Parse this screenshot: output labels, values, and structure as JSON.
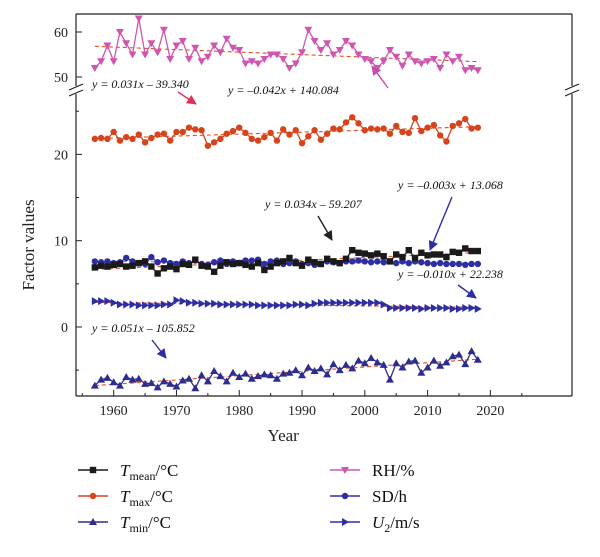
{
  "chart_data": {
    "type": "line",
    "title": "",
    "xlabel": "Year",
    "ylabel": "Factor values",
    "x_range": [
      1954,
      2033
    ],
    "x_ticks": [
      1960,
      1970,
      1980,
      1990,
      2000,
      2010,
      2020
    ],
    "lower_ylim": [
      -8,
      27
    ],
    "lower_ticks": [
      0,
      10,
      20
    ],
    "upper_ylim": [
      48,
      64
    ],
    "upper_ticks": [
      50,
      60
    ],
    "axis_break": true,
    "grid": false,
    "legend_placement": "bottom",
    "years": [
      1957,
      1958,
      1959,
      1960,
      1961,
      1962,
      1963,
      1964,
      1965,
      1966,
      1967,
      1968,
      1969,
      1970,
      1971,
      1972,
      1973,
      1974,
      1975,
      1976,
      1977,
      1978,
      1979,
      1980,
      1981,
      1982,
      1983,
      1984,
      1985,
      1986,
      1987,
      1988,
      1989,
      1990,
      1991,
      1992,
      1993,
      1994,
      1995,
      1996,
      1997,
      1998,
      1999,
      2000,
      2001,
      2002,
      2003,
      2004,
      2005,
      2006,
      2007,
      2008,
      2009,
      2010,
      2011,
      2012,
      2013,
      2014,
      2015,
      2016,
      2017,
      2018
    ],
    "series": [
      {
        "name": "Tmean/°C",
        "color": "#1a1a1a",
        "marker": "square",
        "values": [
          6.9,
          7.1,
          7.0,
          7.2,
          7.3,
          7.0,
          7.1,
          7.4,
          7.6,
          7.0,
          6.2,
          6.8,
          7.0,
          6.7,
          7.3,
          7.2,
          7.8,
          7.1,
          7.0,
          6.4,
          7.1,
          7.5,
          7.3,
          7.4,
          7.2,
          7.0,
          7.4,
          6.6,
          7.0,
          7.4,
          7.6,
          8.0,
          7.4,
          7.1,
          7.8,
          7.5,
          7.3,
          7.9,
          7.6,
          7.4,
          7.9,
          8.9,
          8.6,
          8.5,
          8.3,
          8.5,
          8.2,
          7.6,
          8.4,
          8.1,
          8.9,
          8.0,
          8.6,
          8.3,
          8.4,
          8.4,
          8.1,
          8.7,
          8.6,
          9.1,
          8.8,
          8.8
        ],
        "trend": "y = 0.034x – 59.207"
      },
      {
        "name": "Tmax/°C",
        "color": "#d7431a",
        "marker": "circle",
        "values": [
          21.8,
          21.9,
          21.8,
          22.6,
          21.6,
          22.0,
          21.8,
          22.3,
          21.4,
          21.9,
          22.3,
          22.4,
          21.6,
          22.6,
          22.6,
          23.1,
          22.9,
          22.8,
          21.0,
          21.4,
          21.8,
          22.4,
          22.7,
          23.1,
          22.5,
          21.8,
          21.6,
          22.0,
          22.5,
          21.6,
          22.9,
          22.3,
          22.8,
          21.3,
          22.1,
          22.8,
          21.7,
          22.4,
          23.0,
          22.9,
          23.7,
          24.3,
          23.6,
          22.8,
          23.0,
          22.9,
          23.0,
          22.4,
          23.3,
          22.6,
          22.5,
          24.2,
          22.7,
          23.1,
          23.4,
          22.2,
          21.5,
          23.3,
          23.6,
          24.1,
          23.0,
          23.1
        ],
        "trend": "y = 0.031x – 39.340"
      },
      {
        "name": "Tmin/°C",
        "color": "#2c2d8f",
        "marker": "triangle-up",
        "values": [
          -6.8,
          -6.1,
          -5.9,
          -6.4,
          -6.8,
          -5.8,
          -6.1,
          -6.0,
          -6.6,
          -6.5,
          -7.0,
          -6.3,
          -6.6,
          -6.9,
          -6.2,
          -6.0,
          -7.1,
          -5.6,
          -6.3,
          -5.1,
          -5.7,
          -6.3,
          -5.3,
          -5.8,
          -5.4,
          -6.0,
          -5.7,
          -5.5,
          -5.6,
          -6.0,
          -5.4,
          -5.3,
          -5.0,
          -5.6,
          -4.7,
          -5.1,
          -4.8,
          -5.5,
          -4.3,
          -5.0,
          -4.4,
          -4.8,
          -3.9,
          -4.2,
          -3.6,
          -4.1,
          -4.4,
          -6.1,
          -4.2,
          -4.7,
          -4.0,
          -3.9,
          -5.3,
          -4.7,
          -3.9,
          -4.5,
          -4.1,
          -3.4,
          -3.2,
          -4.3,
          -2.8,
          -3.8
        ],
        "trend": "y = 0.051x – 105.852"
      },
      {
        "name": "RH/%",
        "color": "#d055b0",
        "marker": "triangle-down",
        "values": [
          52.0,
          53.5,
          57.0,
          53.5,
          60.0,
          57.5,
          55.0,
          63.0,
          55.0,
          57.5,
          55.5,
          60.5,
          54.0,
          57.0,
          58.0,
          54.0,
          56.5,
          53.5,
          54.5,
          57.0,
          55.5,
          58.5,
          56.5,
          56.0,
          53.0,
          53.5,
          53.0,
          54.0,
          55.0,
          55.0,
          54.0,
          52.0,
          53.0,
          55.5,
          60.5,
          58.0,
          56.0,
          57.5,
          55.0,
          56.0,
          58.0,
          57.0,
          55.0,
          54.0,
          53.5,
          52.0,
          53.5,
          56.0,
          54.5,
          52.5,
          55.0,
          53.5,
          53.0,
          53.5,
          54.0,
          52.0,
          55.0,
          53.5,
          54.5,
          51.5,
          52.0,
          51.5
        ],
        "trend": "y = –0.042x + 140.084"
      },
      {
        "name": "SD/h",
        "color": "#2d2ea3",
        "marker": "circle",
        "values": [
          7.6,
          7.5,
          7.6,
          7.4,
          7.5,
          8.0,
          7.6,
          7.4,
          7.3,
          8.1,
          7.5,
          7.7,
          7.4,
          7.3,
          7.6,
          7.4,
          7.7,
          7.3,
          7.2,
          7.5,
          7.7,
          7.3,
          7.6,
          7.4,
          7.7,
          7.7,
          7.8,
          7.3,
          7.6,
          7.7,
          7.3,
          7.4,
          7.6,
          7.3,
          7.4,
          7.2,
          7.3,
          7.6,
          7.5,
          7.4,
          7.6,
          7.6,
          7.7,
          7.6,
          7.5,
          7.6,
          7.5,
          7.6,
          7.4,
          7.6,
          7.4,
          7.6,
          7.5,
          7.4,
          7.3,
          7.4,
          7.3,
          7.3,
          7.3,
          7.2,
          7.3,
          7.3
        ],
        "trend": "y = –0.003x + 13.068"
      },
      {
        "name": "U2/m/s",
        "color": "#2d2ea3",
        "marker": "triangle-right",
        "values": [
          3.0,
          3.0,
          3.0,
          2.8,
          2.6,
          2.6,
          2.6,
          2.5,
          2.5,
          2.5,
          2.5,
          2.6,
          2.6,
          3.1,
          3.0,
          2.8,
          2.8,
          2.7,
          2.7,
          2.7,
          2.6,
          2.6,
          2.6,
          2.6,
          2.6,
          2.6,
          2.5,
          2.5,
          2.5,
          2.5,
          2.5,
          2.5,
          2.6,
          2.6,
          2.5,
          2.7,
          2.8,
          2.8,
          2.8,
          2.8,
          2.8,
          2.8,
          2.8,
          2.8,
          2.8,
          2.8,
          2.6,
          2.2,
          2.2,
          2.2,
          2.2,
          2.2,
          2.1,
          2.2,
          2.2,
          2.2,
          2.2,
          2.1,
          2.1,
          2.2,
          2.2,
          2.1
        ],
        "trend": "y = –0.010x + 22.238"
      }
    ],
    "annotations": [
      {
        "text": "y = 0.031x – 39.340"
      },
      {
        "text": "y = –0.042x + 140.084"
      },
      {
        "text": "y = 0.034x – 59.207"
      },
      {
        "text": "y = –0.003x + 13.068"
      },
      {
        "text": "y = –0.010x + 22.238"
      },
      {
        "text": "y = 0.051x – 105.852"
      }
    ],
    "legend": [
      {
        "base": "T",
        "sub": "mean",
        "unit": "/°C"
      },
      {
        "base": "RH/%",
        "sub": "",
        "unit": ""
      },
      {
        "base": "T",
        "sub": "max",
        "unit": "/°C"
      },
      {
        "base": "SD/h",
        "sub": "",
        "unit": ""
      },
      {
        "base": "T",
        "sub": "min",
        "unit": "/°C"
      },
      {
        "base": "U",
        "sub": "2",
        "unit": "/m/s"
      }
    ]
  }
}
